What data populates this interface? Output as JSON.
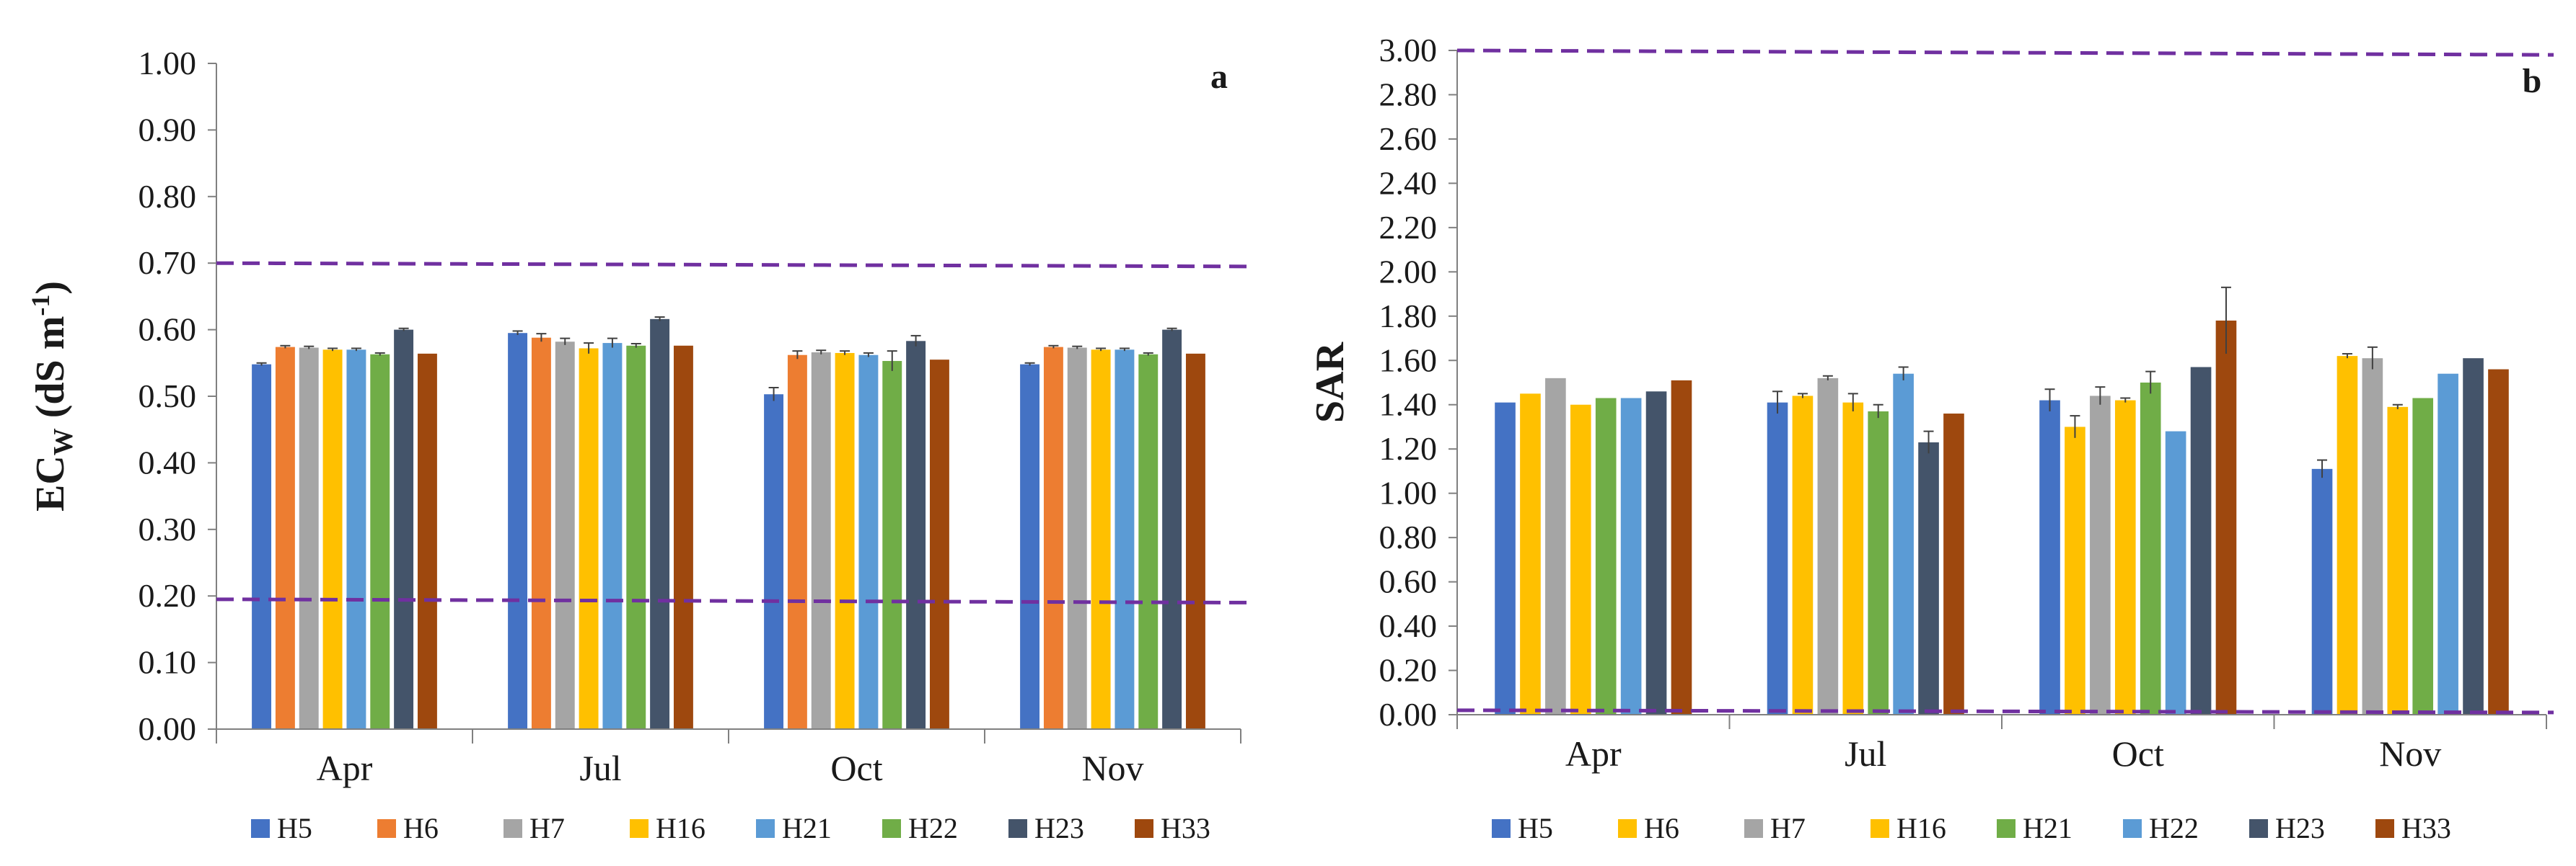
{
  "chart_data": [
    {
      "type": "bar",
      "panel": "a",
      "ylabel": "EC",
      "ylabel_sub": "W",
      "ylabel_unit": "(dS m",
      "ylabel_sup": "-1",
      "ylabel_close": ")",
      "xlabel": "",
      "ylim": [
        0,
        1
      ],
      "ytick_step": 0.1,
      "yticks": [
        "0.00",
        "0.10",
        "0.20",
        "0.30",
        "0.40",
        "0.50",
        "0.60",
        "0.70",
        "0.80",
        "0.90",
        "1.00"
      ],
      "categories": [
        "Apr",
        "Jul",
        "Oct",
        "Nov"
      ],
      "series": [
        {
          "name": "H5",
          "color": "#4472C4",
          "values": [
            0.548,
            0.595,
            0.503,
            0.548
          ],
          "errors": [
            0.002,
            0.003,
            0.01,
            0.002
          ]
        },
        {
          "name": "H6",
          "color": "#ED7D31",
          "values": [
            0.574,
            0.588,
            0.562,
            0.574
          ],
          "errors": [
            0.002,
            0.006,
            0.006,
            0.002
          ]
        },
        {
          "name": "H7",
          "color": "#A5A5A5",
          "values": [
            0.573,
            0.582,
            0.566,
            0.573
          ],
          "errors": [
            0.002,
            0.005,
            0.003,
            0.002
          ]
        },
        {
          "name": "H16",
          "color": "#FFC000",
          "values": [
            0.57,
            0.572,
            0.565,
            0.57
          ],
          "errors": [
            0.002,
            0.008,
            0.003,
            0.002
          ]
        },
        {
          "name": "H21",
          "color": "#5B9BD5",
          "values": [
            0.57,
            0.58,
            0.562,
            0.57
          ],
          "errors": [
            0.002,
            0.007,
            0.003,
            0.002
          ]
        },
        {
          "name": "H22",
          "color": "#70AD47",
          "values": [
            0.563,
            0.576,
            0.553,
            0.563
          ],
          "errors": [
            0.002,
            0.003,
            0.015,
            0.002
          ]
        },
        {
          "name": "H23",
          "color": "#44546A",
          "values": [
            0.6,
            0.616,
            0.583,
            0.6
          ],
          "errors": [
            0.002,
            0.003,
            0.008,
            0.002
          ]
        },
        {
          "name": "H33",
          "color": "#9E480E",
          "values": [
            0.564,
            0.576,
            0.555,
            0.564
          ],
          "errors": [
            0,
            0,
            0,
            0
          ]
        }
      ],
      "reference_lines": [
        {
          "y_start": 0.7,
          "y_end": 0.695,
          "color": "#7030A0"
        },
        {
          "y_start": 0.195,
          "y_end": 0.19,
          "color": "#7030A0"
        }
      ],
      "legend_position": "bottom"
    },
    {
      "type": "bar",
      "panel": "b",
      "ylabel": "SAR",
      "xlabel": "",
      "ylim": [
        0,
        3
      ],
      "ytick_step": 0.2,
      "yticks": [
        "0.00",
        "0.20",
        "0.40",
        "0.60",
        "0.80",
        "1.00",
        "1.20",
        "1.40",
        "1.60",
        "1.80",
        "2.00",
        "2.20",
        "2.40",
        "2.60",
        "2.80",
        "3.00"
      ],
      "categories": [
        "Apr",
        "Jul",
        "Oct",
        "Nov"
      ],
      "series": [
        {
          "name": "H5",
          "color": "#4472C4",
          "values": [
            1.41,
            1.41,
            1.42,
            1.11
          ],
          "errors": [
            0,
            0.05,
            0.05,
            0.04
          ]
        },
        {
          "name": "H6",
          "color": "#FFC000",
          "values": [
            1.45,
            1.44,
            1.3,
            1.62
          ],
          "errors": [
            0,
            0.01,
            0.05,
            0.01
          ]
        },
        {
          "name": "H7",
          "color": "#A5A5A5",
          "values": [
            1.52,
            1.52,
            1.44,
            1.61
          ],
          "errors": [
            0,
            0.01,
            0.04,
            0.05
          ]
        },
        {
          "name": "H16",
          "color": "#FFC000",
          "values": [
            1.4,
            1.41,
            1.42,
            1.39
          ],
          "errors": [
            0,
            0.04,
            0.01,
            0.01
          ]
        },
        {
          "name": "H21",
          "color": "#70AD47",
          "values": [
            1.43,
            1.37,
            1.5,
            1.43
          ],
          "errors": [
            0,
            0.03,
            0.05,
            0
          ]
        },
        {
          "name": "H22",
          "color": "#5B9BD5",
          "values": [
            1.43,
            1.54,
            1.28,
            1.54
          ],
          "errors": [
            0,
            0.03,
            0,
            0
          ]
        },
        {
          "name": "H23",
          "color": "#44546A",
          "values": [
            1.46,
            1.23,
            1.57,
            1.61
          ],
          "errors": [
            0,
            0.05,
            0,
            0
          ]
        },
        {
          "name": "H33",
          "color": "#9E480E",
          "values": [
            1.51,
            1.36,
            1.78,
            1.56
          ],
          "errors": [
            0,
            0,
            0.15,
            0
          ]
        }
      ],
      "reference_lines": [
        {
          "y_start": 3.0,
          "y_end": 2.98,
          "color": "#7030A0"
        },
        {
          "y_start": 0.02,
          "y_end": 0.01,
          "color": "#7030A0"
        }
      ],
      "legend_position": "bottom"
    }
  ]
}
